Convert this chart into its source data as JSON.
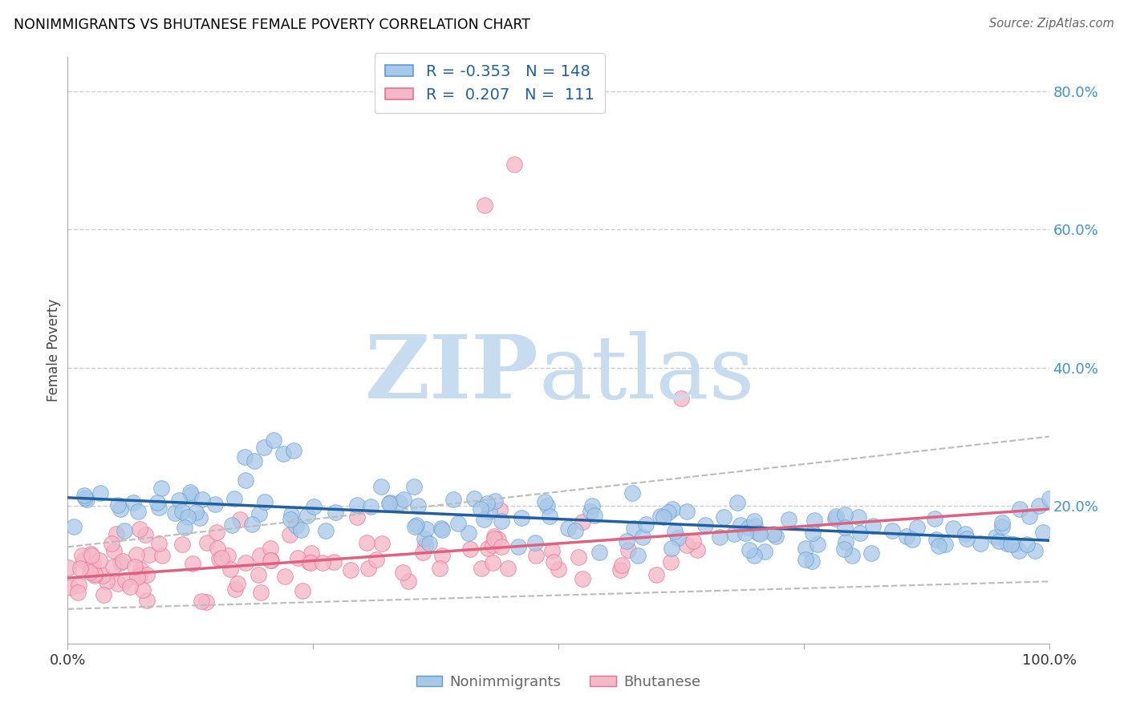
{
  "title": "NONIMMIGRANTS VS BHUTANESE FEMALE POVERTY CORRELATION CHART",
  "source": "Source: ZipAtlas.com",
  "ylabel": "Female Poverty",
  "nonimmigrant_color": "#A8C8E8",
  "nonimmigrant_edge_color": "#5B9BD5",
  "bhutanese_color": "#F4B8C8",
  "bhutanese_edge_color": "#E87090",
  "trend_nonimmigrant_color": "#2060A0",
  "trend_bhutanese_color": "#E06080",
  "ci_color": "#BBBBBB",
  "legend_text_color": "#2060A0",
  "watermark_zip_color": "#C8DCF0",
  "watermark_atlas_color": "#C8DCF0",
  "right_axis_color": "#4090D0",
  "grid_color": "#CCCCCC",
  "spine_color": "#AAAAAA"
}
